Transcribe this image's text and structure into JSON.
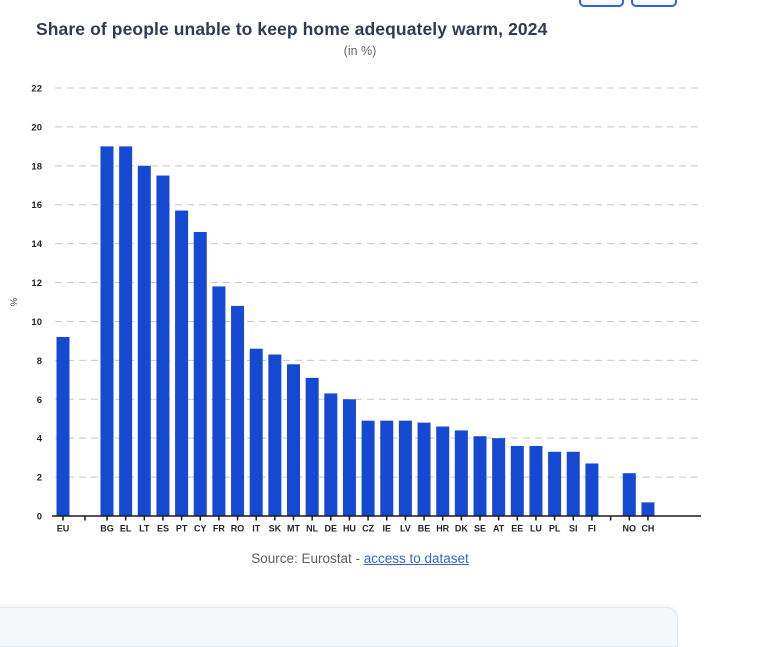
{
  "chart_data": {
    "type": "bar",
    "title": "Share of people unable to keep home adequately warm, 2024",
    "subtitle": "(in %)",
    "ylabel": "%",
    "ylim": [
      0,
      22
    ],
    "ytick_step": 2,
    "grid": "horizontal-dashed",
    "legend": "none",
    "categories": [
      "EU",
      "BG",
      "EL",
      "LT",
      "ES",
      "PT",
      "CY",
      "FR",
      "RO",
      "IT",
      "SK",
      "MT",
      "NL",
      "DE",
      "HU",
      "CZ",
      "IE",
      "LV",
      "BE",
      "HR",
      "DK",
      "SE",
      "AT",
      "EE",
      "LU",
      "PL",
      "SI",
      "FI",
      "NO",
      "CH"
    ],
    "values": [
      9.2,
      19.0,
      19.0,
      18.0,
      17.5,
      15.7,
      14.6,
      11.8,
      10.8,
      8.6,
      8.3,
      7.8,
      7.1,
      6.3,
      6.0,
      4.9,
      4.9,
      4.9,
      4.8,
      4.6,
      4.4,
      4.1,
      4.0,
      3.6,
      3.6,
      3.3,
      3.3,
      2.7,
      2.2,
      0.7
    ],
    "separators_after_indices": [
      0,
      27
    ],
    "bar_color": "#1549d2"
  },
  "source": {
    "prefix": "Source: Eurostat - ",
    "link_text": "access to dataset"
  },
  "colors": {
    "bar": "#1549d2",
    "link": "#3366cc",
    "title_text": "#2e3b52",
    "gridline": "#c9c9c9",
    "panel_background": "#f5f8fb",
    "button_border": "#2e63de"
  }
}
